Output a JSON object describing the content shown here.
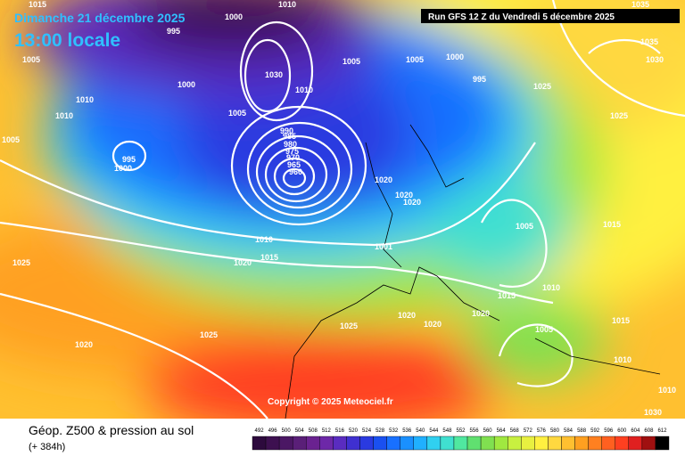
{
  "header": {
    "date": "Dimanche 21 décembre 2025",
    "time": "13:00 locale",
    "run": "Run GFS 12 Z du Vendredi 5 décembre 2025"
  },
  "copyright": "Copyright © 2025 Meteociel.fr",
  "footer": {
    "title": "Géop. Z500 & pression au sol",
    "lead": "(+ 384h)"
  },
  "legend": {
    "values": [
      492,
      496,
      500,
      504,
      508,
      512,
      516,
      520,
      524,
      528,
      532,
      536,
      540,
      544,
      548,
      552,
      556,
      560,
      564,
      568,
      572,
      576,
      580,
      584,
      588,
      592,
      596,
      600,
      604,
      608,
      612
    ],
    "colors": [
      "#2d0a3d",
      "#3d1050",
      "#4b1764",
      "#5a1f78",
      "#6a2290",
      "#6d28a8",
      "#5a2cc0",
      "#3f30d0",
      "#2a3ae0",
      "#1a50f0",
      "#1870ff",
      "#1a90ff",
      "#20b0ff",
      "#30d0f0",
      "#40e0d0",
      "#50e8a0",
      "#60e070",
      "#80e050",
      "#a0e840",
      "#c8f040",
      "#e8f040",
      "#fff040",
      "#ffd840",
      "#ffc030",
      "#ffa020",
      "#ff8020",
      "#ff6020",
      "#ff4020",
      "#e02020",
      "#a01010",
      "#000000"
    ]
  },
  "isobars": {
    "labels": [
      "1015",
      "1000",
      "1010",
      "995",
      "1005",
      "1000",
      "1010",
      "1005",
      "1005",
      "1010",
      "1000",
      "995",
      "1005",
      "1030",
      "1010",
      "1005",
      "1000",
      "995",
      "990",
      "985",
      "980",
      "975",
      "970",
      "965",
      "960",
      "1020",
      "1020",
      "1020",
      "1010",
      "1020",
      "1015",
      "1005",
      "1001",
      "1025",
      "1020",
      "1025",
      "1025",
      "1020",
      "1020",
      "1020",
      "1015",
      "1010",
      "1005",
      "1015",
      "1010",
      "1010",
      "1035",
      "1030",
      "1025",
      "1035",
      "1030",
      "1015",
      "1025"
    ]
  }
}
